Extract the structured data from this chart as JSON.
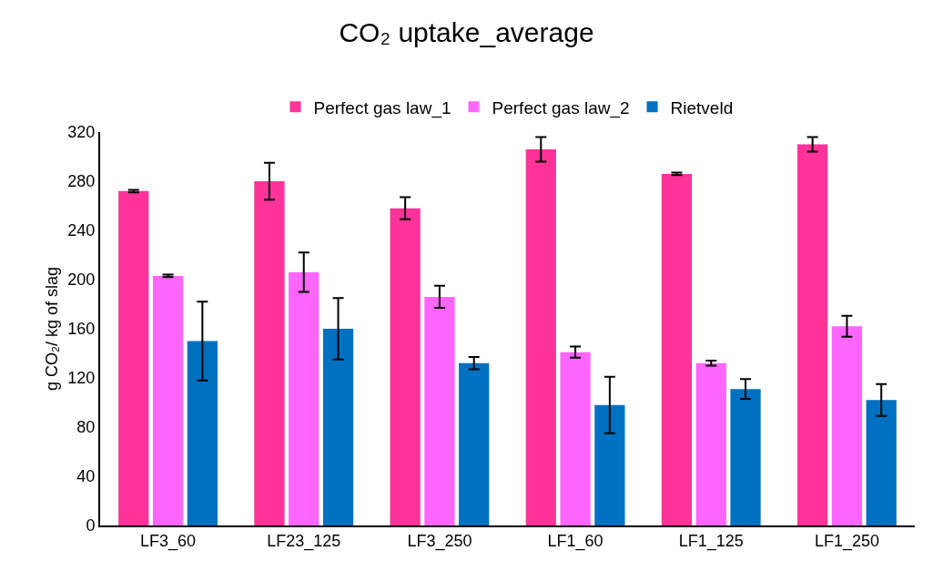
{
  "chart_data": {
    "type": "bar",
    "title": "CO₂ uptake_average",
    "ylabel": "g CO₂/ kg of slag",
    "categories": [
      "LF3_60",
      "LF23_125",
      "LF3_250",
      "LF1_60",
      "LF1_125",
      "LF1_250"
    ],
    "series": [
      {
        "name": "Perfect gas law_1",
        "color": "#ff3399",
        "values": [
          272,
          280,
          258,
          306,
          286,
          310
        ],
        "errors": [
          1,
          15,
          9,
          10,
          1,
          6
        ]
      },
      {
        "name": "Perfect gas law_2",
        "color": "#ff66ff",
        "values": [
          203,
          206,
          186,
          141,
          132,
          162
        ],
        "errors": [
          1,
          16,
          9,
          4.5,
          2,
          8.5
        ]
      },
      {
        "name": "Rietveld",
        "color": "#0070c0",
        "values": [
          150,
          160,
          132,
          98,
          111,
          102
        ],
        "errors": [
          32,
          25,
          5,
          23,
          8,
          13
        ]
      }
    ],
    "ylim": [
      0,
      320
    ],
    "yticks": [
      0,
      40,
      80,
      120,
      160,
      200,
      240,
      280,
      320
    ],
    "grid": false,
    "legend": "top"
  }
}
